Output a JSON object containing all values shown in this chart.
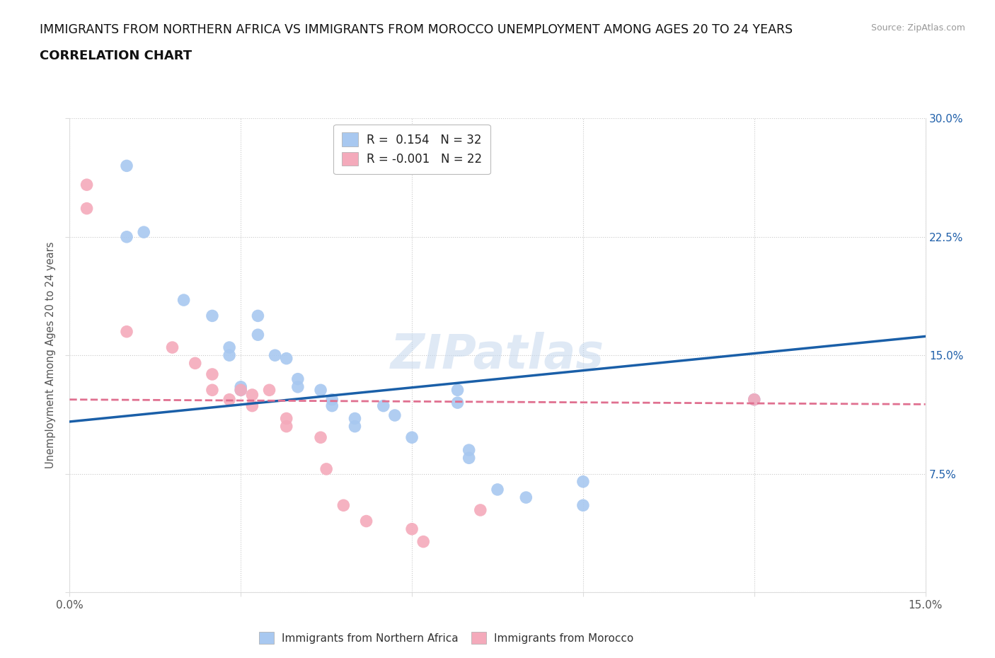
{
  "title_line1": "IMMIGRANTS FROM NORTHERN AFRICA VS IMMIGRANTS FROM MOROCCO UNEMPLOYMENT AMONG AGES 20 TO 24 YEARS",
  "title_line2": "CORRELATION CHART",
  "source": "Source: ZipAtlas.com",
  "ylabel": "Unemployment Among Ages 20 to 24 years",
  "xlim": [
    0.0,
    0.15
  ],
  "ylim": [
    0.0,
    0.3
  ],
  "legend_r1": "R =  0.154   N = 32",
  "legend_r2": "R = -0.001   N = 22",
  "blue_color": "#A8C8F0",
  "pink_color": "#F4AABB",
  "line_blue": "#1A5FA8",
  "line_pink": "#E07090",
  "watermark": "ZIPatlas",
  "blue_dots": [
    [
      0.01,
      0.27
    ],
    [
      0.01,
      0.225
    ],
    [
      0.013,
      0.228
    ],
    [
      0.02,
      0.185
    ],
    [
      0.025,
      0.175
    ],
    [
      0.028,
      0.155
    ],
    [
      0.028,
      0.15
    ],
    [
      0.03,
      0.13
    ],
    [
      0.03,
      0.128
    ],
    [
      0.033,
      0.175
    ],
    [
      0.033,
      0.163
    ],
    [
      0.036,
      0.15
    ],
    [
      0.038,
      0.148
    ],
    [
      0.04,
      0.135
    ],
    [
      0.04,
      0.13
    ],
    [
      0.044,
      0.128
    ],
    [
      0.046,
      0.122
    ],
    [
      0.046,
      0.118
    ],
    [
      0.05,
      0.11
    ],
    [
      0.05,
      0.105
    ],
    [
      0.055,
      0.118
    ],
    [
      0.057,
      0.112
    ],
    [
      0.06,
      0.098
    ],
    [
      0.068,
      0.128
    ],
    [
      0.068,
      0.12
    ],
    [
      0.07,
      0.09
    ],
    [
      0.07,
      0.085
    ],
    [
      0.075,
      0.065
    ],
    [
      0.08,
      0.06
    ],
    [
      0.09,
      0.07
    ],
    [
      0.09,
      0.055
    ],
    [
      0.12,
      0.122
    ]
  ],
  "pink_dots": [
    [
      0.003,
      0.258
    ],
    [
      0.003,
      0.243
    ],
    [
      0.01,
      0.165
    ],
    [
      0.018,
      0.155
    ],
    [
      0.022,
      0.145
    ],
    [
      0.025,
      0.138
    ],
    [
      0.025,
      0.128
    ],
    [
      0.028,
      0.122
    ],
    [
      0.03,
      0.128
    ],
    [
      0.032,
      0.125
    ],
    [
      0.032,
      0.118
    ],
    [
      0.035,
      0.128
    ],
    [
      0.038,
      0.11
    ],
    [
      0.038,
      0.105
    ],
    [
      0.044,
      0.098
    ],
    [
      0.045,
      0.078
    ],
    [
      0.048,
      0.055
    ],
    [
      0.052,
      0.045
    ],
    [
      0.06,
      0.04
    ],
    [
      0.062,
      0.032
    ],
    [
      0.072,
      0.052
    ],
    [
      0.12,
      0.122
    ]
  ],
  "blue_line_x": [
    0.0,
    0.15
  ],
  "blue_line_y": [
    0.108,
    0.162
  ],
  "pink_line_x": [
    0.0,
    0.15
  ],
  "pink_line_y": [
    0.122,
    0.119
  ]
}
